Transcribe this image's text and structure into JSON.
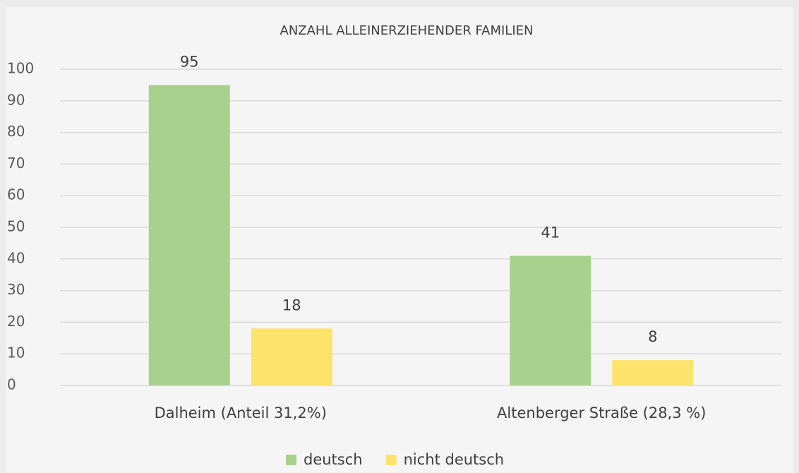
{
  "chart_data": {
    "type": "bar",
    "title": "ANZAHL ALLEINERZIEHENDER FAMILIEN",
    "categories": [
      "Dalheim (Anteil 31,2%)",
      "Altenberger Straße (28,3 %)"
    ],
    "series": [
      {
        "name": "deutsch",
        "color": "#a9d18e",
        "values": [
          95,
          41
        ]
      },
      {
        "name": "nicht deutsch",
        "color": "#fde36b",
        "values": [
          18,
          8
        ]
      }
    ],
    "ylim": [
      0,
      100
    ],
    "yticks": [
      0,
      10,
      20,
      30,
      40,
      50,
      60,
      70,
      80,
      90,
      100
    ],
    "grid": true,
    "legend": "bottom"
  }
}
